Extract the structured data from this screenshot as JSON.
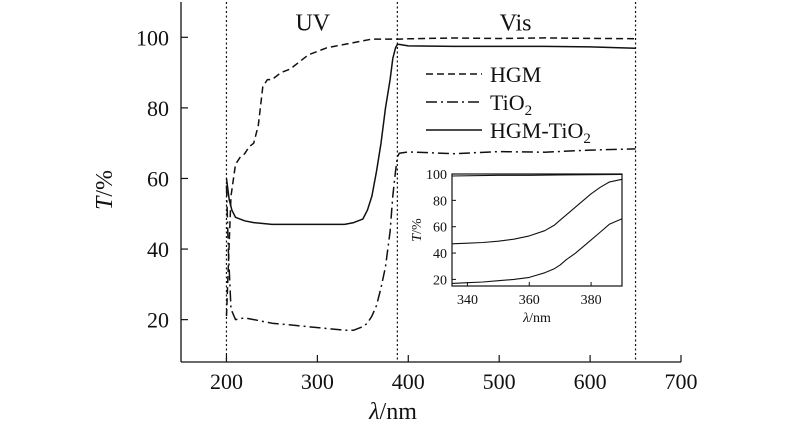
{
  "chart_data": {
    "type": "line",
    "xlabel": {
      "italic": "λ",
      "rest": "/nm"
    },
    "ylabel": {
      "italic": "T",
      "rest": "/%"
    },
    "xlim": [
      150,
      700
    ],
    "ylim": [
      8,
      110
    ],
    "xticks": [
      200,
      300,
      400,
      500,
      600,
      700
    ],
    "yticks": [
      20,
      40,
      60,
      80,
      100
    ],
    "vlines": [
      200,
      388,
      650
    ],
    "regions": [
      {
        "label": "UV",
        "x": 295,
        "y": 107
      },
      {
        "label": "Vis",
        "x": 518,
        "y": 107
      }
    ],
    "legend_position": "upper-right",
    "series": [
      {
        "name": "HGM",
        "name_base": "HGM",
        "name_sub": "",
        "name_tail": "",
        "style": "dashed",
        "x": [
          200,
          202,
          205,
          210,
          215,
          220,
          225,
          230,
          235,
          240,
          245,
          250,
          255,
          260,
          270,
          280,
          290,
          300,
          310,
          320,
          330,
          340,
          350,
          360,
          370,
          380,
          390,
          400,
          450,
          500,
          550,
          600,
          650
        ],
        "y": [
          21,
          35,
          55,
          64,
          66,
          67,
          69,
          70,
          75,
          86,
          88,
          88,
          89,
          90,
          91,
          93,
          95,
          96,
          97,
          97.5,
          98,
          98.5,
          99,
          99.5,
          99.5,
          99.5,
          99.5,
          99.6,
          99.7,
          99.6,
          99.8,
          99.7,
          99.5
        ]
      },
      {
        "name": "TiO2",
        "name_base": "TiO",
        "name_sub": "2",
        "name_tail": "",
        "style": "dashdot",
        "x": [
          200,
          202,
          205,
          210,
          220,
          230,
          250,
          270,
          290,
          310,
          330,
          340,
          350,
          355,
          360,
          365,
          370,
          375,
          380,
          383,
          386,
          388,
          390,
          400,
          450,
          500,
          550,
          600,
          650
        ],
        "y": [
          58,
          40,
          23,
          20,
          20.5,
          20,
          19,
          18.5,
          18,
          17.5,
          17,
          17,
          18,
          19,
          21,
          24,
          29,
          35,
          45,
          55,
          62,
          66,
          67,
          67.5,
          67,
          67.5,
          67.5,
          68,
          68.5
        ]
      },
      {
        "name": "HGM-TiO2",
        "name_base": "HGM-TiO",
        "name_sub": "2",
        "name_tail": "",
        "style": "solid",
        "x": [
          200,
          203,
          206,
          210,
          220,
          230,
          250,
          270,
          290,
          310,
          330,
          340,
          350,
          355,
          360,
          365,
          370,
          375,
          380,
          383,
          386,
          388,
          390,
          400,
          450,
          500,
          550,
          600,
          650
        ],
        "y": [
          60,
          54,
          51,
          49,
          48,
          47.5,
          47,
          47,
          47,
          47,
          47,
          47.5,
          48.5,
          51,
          55,
          62,
          70,
          80,
          88,
          94,
          97,
          98,
          98,
          97.5,
          97.5,
          97.5,
          97.3,
          97.2,
          97
        ]
      }
    ],
    "inset": {
      "xlabel": {
        "italic": "λ",
        "rest": "/nm"
      },
      "ylabel": {
        "italic": "T",
        "rest": "/%"
      },
      "xlim": [
        335,
        390
      ],
      "ylim": [
        15,
        100
      ],
      "xticks": [
        340,
        360,
        380
      ],
      "yticks": [
        20,
        40,
        60,
        80,
        100
      ],
      "series": [
        {
          "name": "HGM",
          "style": "solid",
          "x": [
            335,
            350,
            360,
            370,
            380,
            390
          ],
          "y": [
            98.5,
            99,
            99,
            99.3,
            99.5,
            99.6
          ]
        },
        {
          "name": "TiO2",
          "style": "solid",
          "x": [
            335,
            340,
            345,
            350,
            355,
            360,
            362,
            365,
            368,
            370,
            372,
            375,
            378,
            380,
            383,
            386,
            390
          ],
          "y": [
            17,
            17.5,
            18,
            19,
            20,
            21.5,
            23,
            25,
            28,
            31,
            35,
            40,
            46,
            50,
            56,
            62,
            66
          ]
        },
        {
          "name": "HGM-TiO2",
          "style": "solid",
          "x": [
            335,
            340,
            345,
            350,
            355,
            360,
            365,
            368,
            370,
            373,
            376,
            380,
            383,
            386,
            390
          ],
          "y": [
            47,
            47.5,
            48,
            49,
            50.5,
            53,
            57,
            61,
            65,
            71,
            77,
            85,
            90,
            94,
            96
          ]
        }
      ]
    }
  }
}
